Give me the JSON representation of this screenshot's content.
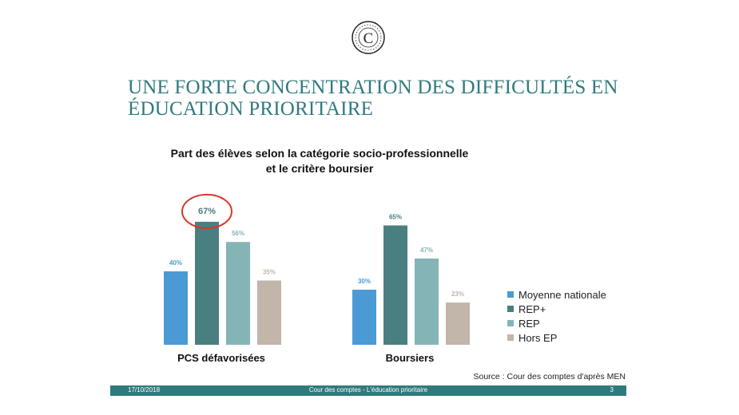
{
  "slide_title": "UNE FORTE CONCENTRATION DES DIFFICULTÉS EN ÉDUCATION PRIORITAIRE",
  "logo_letter": "C",
  "chart_data": {
    "type": "bar",
    "title_line1": "Part des élèves selon la catégorie socio-professionnelle",
    "title_line2": "et le critère boursier",
    "categories": [
      "PCS défavorisées",
      "Boursiers"
    ],
    "series": [
      {
        "name": "Moyenne nationale",
        "values": [
          40,
          30
        ],
        "labels": [
          "40%",
          "30%"
        ],
        "color": "#4b9ad6"
      },
      {
        "name": "REP+",
        "values": [
          67,
          65
        ],
        "labels": [
          "67%",
          "65%"
        ],
        "color": "#4a7f82"
      },
      {
        "name": "REP",
        "values": [
          56,
          47
        ],
        "labels": [
          "56%",
          "47%"
        ],
        "color": "#85b4b7"
      },
      {
        "name": "Hors EP",
        "values": [
          35,
          23
        ],
        "labels": [
          "35%",
          "23%"
        ],
        "color": "#c2b5a9"
      }
    ],
    "highlight": {
      "category_index": 0,
      "series_index": 1,
      "color": "#d9372b"
    },
    "ylim": [
      0,
      80
    ],
    "grid": false,
    "legend_position": "right"
  },
  "source": "Source : Cour des comptes d'après MEN",
  "footer": {
    "date": "17/10/2018",
    "center": "Cour des comptes - L'éducation prioritaire",
    "page": "3"
  }
}
